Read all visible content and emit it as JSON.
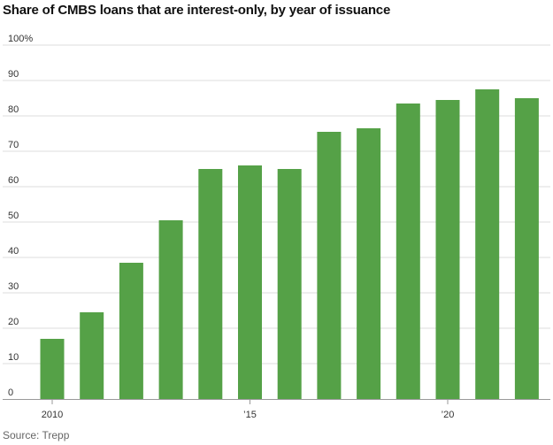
{
  "title": "Share of CMBS loans that are interest-only, by year of issuance",
  "source": "Source: Trepp",
  "colors": {
    "bar": "#55a147",
    "grid": "#dcdcdc",
    "axis": "#999999"
  },
  "chart_data": {
    "type": "bar",
    "title": "Share of CMBS loans that are interest-only, by year of issuance",
    "xlabel": "",
    "ylabel": "",
    "categories": [
      "2010",
      "2011",
      "2012",
      "2013",
      "2014",
      "2015",
      "2016",
      "2017",
      "2018",
      "2019",
      "2020",
      "2021",
      "2022"
    ],
    "values": [
      17,
      24.5,
      38.5,
      50.5,
      65,
      66,
      65,
      75.5,
      76.5,
      83.5,
      84.5,
      87.5,
      85
    ],
    "ylim": [
      0,
      100
    ],
    "yticks": [
      0,
      10,
      20,
      30,
      40,
      50,
      60,
      70,
      80,
      90,
      100
    ],
    "ytick_labels": [
      "0",
      "10",
      "20",
      "30",
      "40",
      "50",
      "60",
      "70",
      "80",
      "90",
      "100%"
    ],
    "xtick_labels": [
      {
        "category": "2010",
        "label": "2010"
      },
      {
        "category": "2015",
        "label": "’15"
      },
      {
        "category": "2020",
        "label": "’20"
      }
    ],
    "grid": true
  }
}
